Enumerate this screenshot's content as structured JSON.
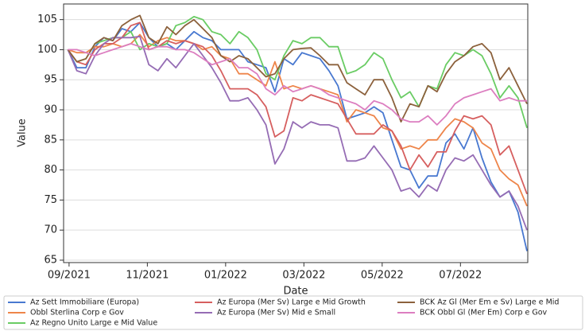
{
  "chart_data": {
    "type": "line",
    "x_label": "Date",
    "y_label": "Value",
    "x": [
      -0.03,
      0.2,
      0.43,
      0.66,
      0.89,
      1.12,
      1.35,
      1.58,
      1.81,
      2.04,
      2.27,
      2.5,
      2.73,
      2.96,
      3.19,
      3.42,
      3.65,
      3.88,
      4.11,
      4.34,
      4.57,
      4.8,
      5.03,
      5.26,
      5.49,
      5.72,
      5.95,
      6.18,
      6.41,
      6.64,
      6.87,
      7.1,
      7.33,
      7.56,
      7.79,
      8.02,
      8.25,
      8.48,
      8.71,
      8.94,
      9.17,
      9.4,
      9.63,
      9.86,
      10.09,
      10.32,
      10.55,
      10.78,
      11.01,
      11.24,
      11.47,
      11.7
    ],
    "xlim": [
      -0.14,
      11.72
    ],
    "xticks": [
      {
        "value": 0,
        "label": "09/2021"
      },
      {
        "value": 2,
        "label": "11/2021"
      },
      {
        "value": 4,
        "label": "01/2022"
      },
      {
        "value": 6,
        "label": "03/2022"
      },
      {
        "value": 8,
        "label": "05/2022"
      },
      {
        "value": 10,
        "label": "07/2022"
      }
    ],
    "ylim": [
      64.6,
      107.6
    ],
    "yticks": [
      65,
      70,
      75,
      80,
      85,
      90,
      95,
      100,
      105
    ],
    "grid": true,
    "series": [
      {
        "name": "Az Sett Immobiliare (Europa)",
        "color": "#4878d0",
        "values": [
          100,
          97,
          97,
          100.5,
          102,
          101.5,
          103.5,
          103,
          104.5,
          102,
          100.5,
          101,
          100,
          101.5,
          103,
          102,
          101.5,
          100,
          100,
          100,
          98,
          97.5,
          97,
          93,
          98.5,
          97.5,
          99.5,
          99,
          98.5,
          96.5,
          94,
          88.5,
          89,
          89.5,
          90.5,
          89.5,
          85,
          80.5,
          80,
          77,
          79,
          79,
          84.5,
          86,
          83.5,
          87,
          82,
          78,
          75.5,
          76.5,
          73,
          66.5
        ]
      },
      {
        "name": "Obbl Sterlina Corp e Gov",
        "color": "#ee854a",
        "values": [
          100,
          99.5,
          99.5,
          100.5,
          100.5,
          101,
          100.5,
          101,
          102.5,
          100.5,
          101.5,
          102,
          101.5,
          101.5,
          101,
          100,
          100.5,
          99,
          98.5,
          96,
          96,
          95,
          94,
          98,
          93.5,
          94,
          93.5,
          94,
          93.5,
          93,
          92.5,
          88,
          90,
          89.5,
          89,
          87,
          86.5,
          83.5,
          84,
          83.5,
          85,
          85,
          87,
          88.5,
          88,
          87,
          84.5,
          83.5,
          80,
          78.5,
          77.5,
          74
        ]
      },
      {
        "name": "Az Regno Unito Large e Mid Value",
        "color": "#6acc64",
        "values": [
          100,
          98,
          98.5,
          101,
          101.5,
          102,
          102,
          103,
          100,
          101,
          100.5,
          101,
          104,
          104.5,
          105.5,
          105,
          103,
          102.5,
          101,
          103,
          102,
          100,
          96,
          95,
          99,
          101.5,
          101,
          102,
          102,
          100.5,
          100.5,
          96,
          96.5,
          97.5,
          99.5,
          98.5,
          95,
          92,
          93,
          90.5,
          94,
          93.5,
          97.5,
          99.5,
          99,
          100,
          99,
          96,
          92,
          94,
          92,
          87
        ]
      },
      {
        "name": "Az Europa (Mer Sv) Large e Mid Growth",
        "color": "#d65f5f",
        "values": [
          100,
          98,
          97.5,
          100,
          101,
          101,
          102,
          104,
          104.5,
          100,
          100.5,
          101.5,
          101,
          101.5,
          101,
          100.5,
          99,
          96.5,
          93.5,
          93.5,
          93.5,
          92.5,
          90.5,
          85.5,
          86.5,
          92,
          91.5,
          92.5,
          92,
          91.5,
          91,
          88.5,
          86,
          86,
          86,
          87.5,
          86.5,
          84,
          80,
          82.5,
          80.5,
          83,
          83,
          86.5,
          89,
          88.5,
          89,
          87.5,
          82.5,
          84,
          80,
          76
        ]
      },
      {
        "name": "Az Europa (Mer Sv) Mid e Small",
        "color": "#956cb4",
        "values": [
          100,
          96.5,
          96,
          99,
          101,
          102,
          102,
          102,
          102.2,
          97.5,
          96.5,
          98.5,
          97,
          99,
          101,
          99,
          97,
          94.5,
          91.5,
          91.5,
          92,
          90,
          87.5,
          81,
          83.5,
          88,
          87,
          88,
          87.5,
          87.5,
          87,
          81.5,
          81.5,
          82,
          84,
          82,
          80,
          76.5,
          77,
          75.5,
          77.5,
          76.5,
          80,
          82,
          81.5,
          82.5,
          80,
          77.5,
          75.5,
          76.5,
          74,
          70
        ]
      },
      {
        "name": "BCK Az Gl (Mer Em e Sv) Large e Mid",
        "color": "#8c613c",
        "values": [
          100,
          98,
          98.5,
          101,
          102,
          101.5,
          104,
          105,
          105.7,
          102,
          101,
          103.8,
          102.5,
          104,
          105,
          103.5,
          102,
          99,
          98,
          99,
          98.5,
          97,
          95.5,
          96,
          98.5,
          100,
          100.2,
          100.3,
          99,
          97.5,
          97.5,
          94.5,
          93.5,
          92.5,
          95,
          95,
          92,
          88,
          91,
          90.5,
          94,
          93,
          96,
          98,
          99,
          100.5,
          101,
          99.5,
          95,
          97,
          94,
          91
        ]
      },
      {
        "name": "BCK Obbl Gl (Mer Em) Corp e Gov",
        "color": "#dc7ec0",
        "values": [
          100,
          100,
          99.5,
          99,
          99.5,
          100,
          100.5,
          101,
          100.5,
          100,
          100.5,
          100.5,
          100,
          100,
          99.5,
          98.5,
          97.5,
          98,
          98.5,
          97,
          97,
          96,
          93.5,
          92.5,
          94,
          93,
          93.5,
          94,
          93.5,
          92.5,
          92,
          91.5,
          91,
          90,
          91.5,
          91,
          90,
          88.5,
          88,
          88,
          89,
          87.5,
          89,
          91,
          92,
          92.5,
          93,
          93.5,
          91.5,
          92,
          91.5,
          91.5
        ]
      }
    ]
  }
}
